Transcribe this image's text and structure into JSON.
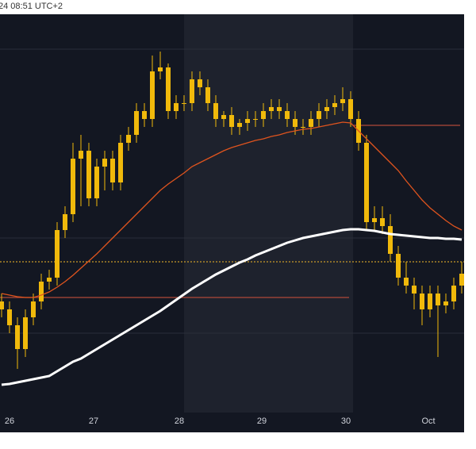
{
  "chart_data": {
    "type": "candlestick",
    "title": "24 08:51 UTC+2",
    "open": [
      32,
      30,
      26,
      20,
      28,
      32,
      37,
      38,
      50,
      54,
      68,
      70,
      58,
      66,
      68,
      62,
      72,
      74,
      80,
      78,
      90,
      91,
      80,
      82,
      82,
      88,
      86,
      82,
      78,
      79,
      76,
      77,
      78,
      78,
      80,
      81,
      80,
      78,
      76,
      76,
      78,
      80,
      81,
      82,
      83,
      78,
      72,
      52,
      53,
      51,
      44,
      38,
      36,
      34,
      30,
      34,
      31,
      32,
      36
    ],
    "high": [
      34,
      32,
      28,
      30,
      34,
      39,
      40,
      52,
      56,
      72,
      74,
      72,
      68,
      70,
      70,
      74,
      76,
      82,
      82,
      94,
      95,
      92,
      84,
      84,
      90,
      90,
      88,
      84,
      80,
      81,
      78,
      80,
      80,
      82,
      83,
      83,
      82,
      80,
      78,
      80,
      82,
      83,
      84,
      86,
      85,
      80,
      74,
      56,
      56,
      54,
      46,
      42,
      38,
      36,
      36,
      36,
      34,
      38,
      42
    ],
    "low": [
      28,
      24,
      15,
      18,
      26,
      30,
      35,
      36,
      48,
      52,
      56,
      56,
      56,
      60,
      60,
      60,
      70,
      72,
      76,
      76,
      88,
      78,
      78,
      80,
      80,
      84,
      80,
      76,
      76,
      74,
      74,
      75,
      76,
      76,
      78,
      78,
      76,
      74,
      74,
      74,
      76,
      78,
      79,
      80,
      76,
      70,
      50,
      50,
      49,
      42,
      36,
      34,
      30,
      26,
      28,
      18,
      29,
      30,
      34
    ],
    "close": [
      30,
      26,
      20,
      28,
      32,
      37,
      38,
      50,
      54,
      68,
      70,
      58,
      66,
      68,
      62,
      72,
      74,
      80,
      78,
      90,
      91,
      80,
      82,
      82,
      88,
      86,
      82,
      78,
      79,
      76,
      77,
      78,
      78,
      80,
      81,
      80,
      78,
      76,
      76,
      78,
      80,
      81,
      82,
      83,
      78,
      72,
      52,
      53,
      51,
      44,
      38,
      36,
      34,
      30,
      34,
      31,
      32,
      36,
      39
    ],
    "series": [
      {
        "color": "#e0541e",
        "values": [
          34,
          33.6,
          33.2,
          33,
          33,
          33.6,
          34.4,
          35.6,
          37,
          38.6,
          40.4,
          42.2,
          44,
          46,
          48,
          50,
          52,
          54,
          56,
          58,
          60,
          61.6,
          63,
          64.4,
          66,
          67,
          68,
          69,
          70,
          70.8,
          71.4,
          72,
          72.6,
          73,
          73.6,
          74,
          74.6,
          75,
          75.4,
          75.6,
          76,
          76.4,
          76.8,
          77.2,
          77,
          75,
          73,
          71,
          69,
          67,
          65,
          62.4,
          60,
          57.6,
          55.6,
          54,
          52.4,
          51,
          50
        ]
      },
      {
        "color": "#ffffff",
        "values": [
          11,
          11.2,
          11.6,
          12,
          12.4,
          12.8,
          13.2,
          14.4,
          15.6,
          16.8,
          17.6,
          18.8,
          20,
          21.2,
          22.4,
          23.6,
          24.8,
          26,
          27.2,
          28.4,
          29.6,
          31,
          32.4,
          33.8,
          35.2,
          36.4,
          37.6,
          38.8,
          39.8,
          40.8,
          41.8,
          42.6,
          43.6,
          44.4,
          45.2,
          46,
          46.8,
          47.4,
          48,
          48.4,
          48.8,
          49.2,
          49.6,
          50,
          50.2,
          50.2,
          50,
          49.8,
          49.4,
          49,
          48.8,
          48.6,
          48.4,
          48.2,
          48,
          48,
          47.8,
          47.8,
          47.6
        ]
      }
    ],
    "levels": [
      {
        "value": 76.4,
        "from": 44.3,
        "to": 57.8,
        "color": "#b04a3a",
        "style": "solid"
      },
      {
        "value": 33,
        "from": -0.2,
        "to": 43.8,
        "color": "#b04a3a",
        "style": "solid"
      },
      {
        "value": 42,
        "from": -0.2,
        "to": 58.3,
        "color": "#c89a2a",
        "style": "dotted"
      }
    ],
    "candle_color": "#f0b90b",
    "xlim": [
      -0.2,
      58.3
    ],
    "ylim": [
      0,
      104.4
    ],
    "xticks": [
      {
        "value": 1,
        "label": "26"
      },
      {
        "value": 11.6,
        "label": "27"
      },
      {
        "value": 22.4,
        "label": "28"
      },
      {
        "value": 32.8,
        "label": "29"
      },
      {
        "value": 43.4,
        "label": "30"
      },
      {
        "value": 53.8,
        "label": "Oct"
      }
    ]
  }
}
